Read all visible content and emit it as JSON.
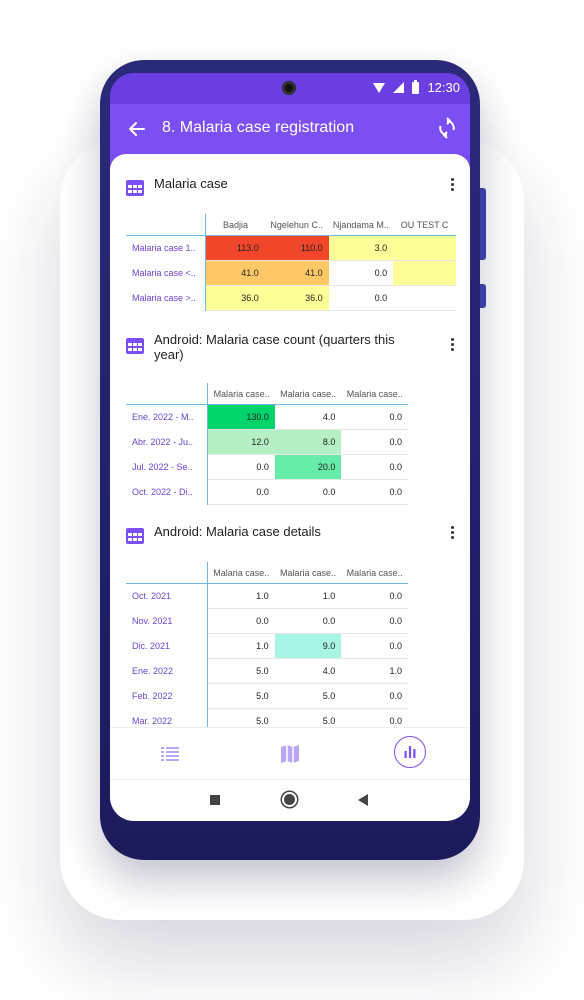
{
  "app": {
    "time": "12:30",
    "title": "8. Malaria case registration"
  },
  "cards": [
    {
      "title": "Malaria case",
      "columns": [
        "Badjia",
        "Ngelehun C..",
        "Njandama M..",
        "OU TEST C"
      ],
      "rows": [
        {
          "label": "Malaria case 1..",
          "values": [
            "113.0",
            "110.0",
            "3.0",
            ""
          ]
        },
        {
          "label": "Malaria case <..",
          "values": [
            "41.0",
            "41.0",
            "0.0",
            ""
          ]
        },
        {
          "label": "Malaria case >..",
          "values": [
            "36.0",
            "36.0",
            "0.0",
            ""
          ]
        }
      ],
      "colors": [
        [
          "#f2462a",
          "#f2462a",
          "#ffff99",
          "#ffff99"
        ],
        [
          "#ffc866",
          "#ffc866",
          "#ffffff",
          "#ffff99"
        ],
        [
          "#ffff99",
          "#ffff99",
          "#ffffff",
          "#ffffff"
        ]
      ]
    },
    {
      "title": "Android: Malaria case count (quarters this year)",
      "columns": [
        "Malaria case..",
        "Malaria case..",
        "Malaria case.."
      ],
      "rows": [
        {
          "label": "Ene. 2022 - M..",
          "values": [
            "130.0",
            "4.0",
            "0.0"
          ]
        },
        {
          "label": "Abr. 2022 - Ju..",
          "values": [
            "12.0",
            "8.0",
            "0.0"
          ]
        },
        {
          "label": "Jul. 2022 - Se..",
          "values": [
            "0.0",
            "20.0",
            "0.0"
          ]
        },
        {
          "label": "Oct. 2022 - Di..",
          "values": [
            "0.0",
            "0.0",
            "0.0"
          ]
        }
      ],
      "colors": [
        [
          "#00d46a",
          "#ffffff",
          "#ffffff"
        ],
        [
          "#b4f0c4",
          "#b4f0c4",
          "#ffffff"
        ],
        [
          "#ffffff",
          "#66eba8",
          "#ffffff"
        ],
        [
          "#ffffff",
          "#ffffff",
          "#ffffff"
        ]
      ]
    },
    {
      "title": "Android: Malaria case details",
      "columns": [
        "Malaria case..",
        "Malaria case..",
        "Malaria case.."
      ],
      "rows": [
        {
          "label": "Oct. 2021",
          "values": [
            "1.0",
            "1.0",
            "0.0"
          ]
        },
        {
          "label": "Nov. 2021",
          "values": [
            "0.0",
            "0.0",
            "0.0"
          ]
        },
        {
          "label": "Dic. 2021",
          "values": [
            "1.0",
            "9.0",
            "0.0"
          ]
        },
        {
          "label": "Ene. 2022",
          "values": [
            "5.0",
            "4.0",
            "1.0"
          ]
        },
        {
          "label": "Feb. 2022",
          "values": [
            "5.0",
            "5.0",
            "0.0"
          ]
        },
        {
          "label": "Mar. 2022",
          "values": [
            "5.0",
            "5.0",
            "0.0"
          ]
        }
      ],
      "colors": [
        [
          "#ffffff",
          "#ffffff",
          "#ffffff"
        ],
        [
          "#ffffff",
          "#ffffff",
          "#ffffff"
        ],
        [
          "#ffffff",
          "#a8f5e6",
          "#ffffff"
        ],
        [
          "#ffffff",
          "#ffffff",
          "#ffffff"
        ],
        [
          "#ffffff",
          "#ffffff",
          "#ffffff"
        ],
        [
          "#ffffff",
          "#ffffff",
          "#ffffff"
        ]
      ]
    }
  ],
  "nav": {
    "items": [
      {
        "icon": "list-icon",
        "active": false
      },
      {
        "icon": "map-icon",
        "active": false
      },
      {
        "icon": "bar-chart-icon",
        "active": true
      }
    ]
  },
  "theme": {
    "primary": "#7c4ff2",
    "primary_dark": "#6a3ee0",
    "frame": "#23236e"
  }
}
